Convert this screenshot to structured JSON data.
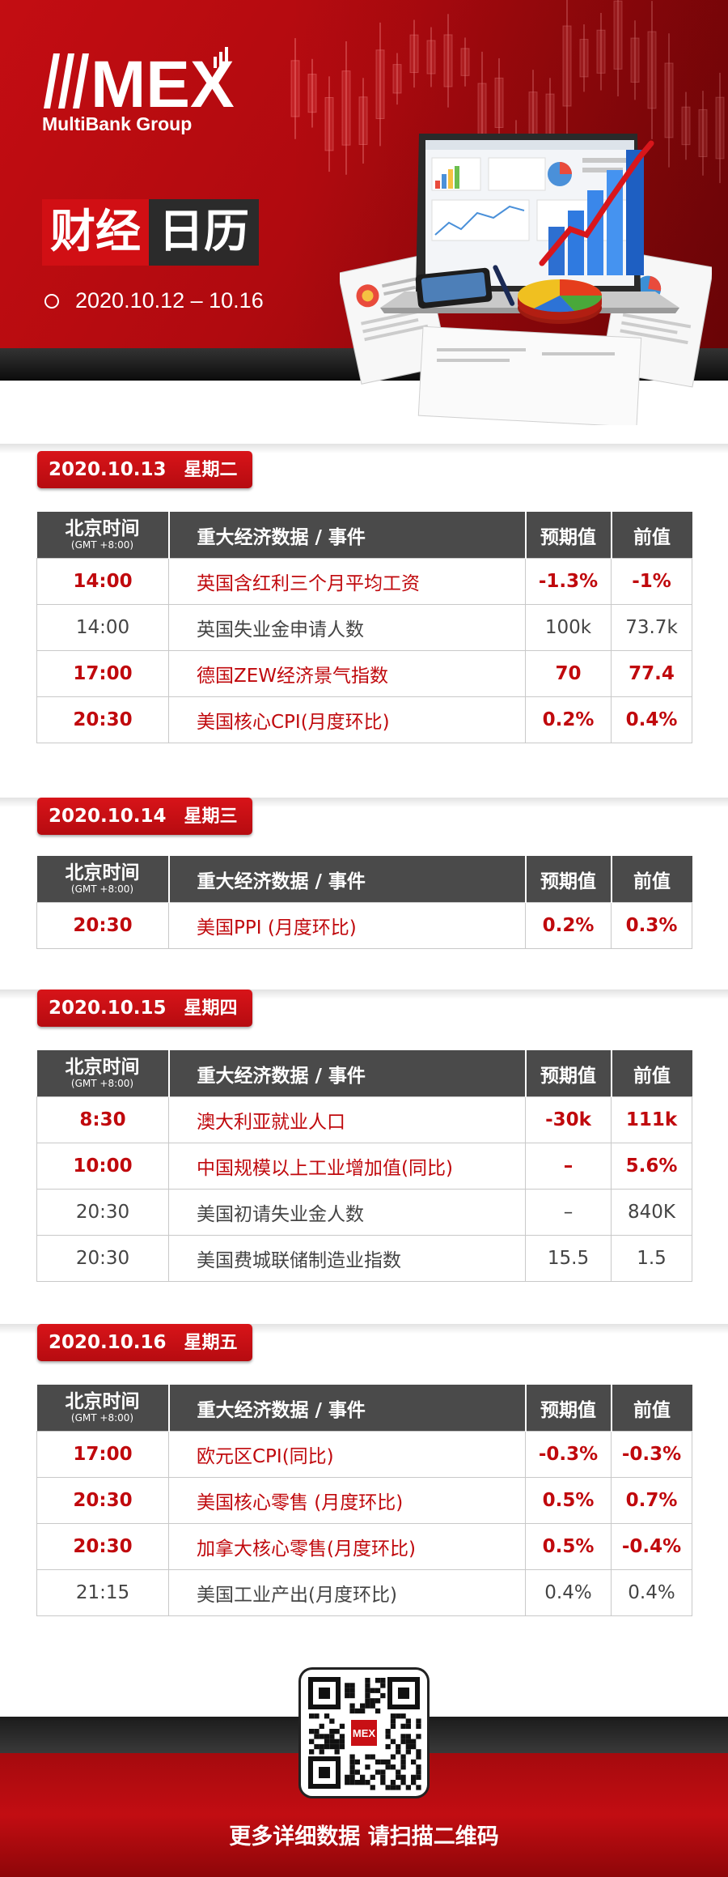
{
  "brand": {
    "logo_text": "MEX",
    "name": "MultiBank Group"
  },
  "hero": {
    "title_red": "财经",
    "title_dark": "日历",
    "date_range": "2020.10.12 – 10.16"
  },
  "table_header": {
    "time": "北京时间",
    "gmt": "(GMT +8:00)",
    "event": "重大经济数据 / 事件",
    "forecast": "预期值",
    "previous": "前值"
  },
  "days": [
    {
      "date": "2020.10.13",
      "weekday": "星期二",
      "rows": [
        {
          "time": "14:00",
          "event": "英国含红利三个月平均工资",
          "forecast": "-1.3%",
          "previous": "-1%",
          "highlight": true
        },
        {
          "time": "14:00",
          "event": "英国失业金申请人数",
          "forecast": "100k",
          "previous": "73.7k",
          "highlight": false
        },
        {
          "time": "17:00",
          "event": "德国ZEW经济景气指数",
          "forecast": "70",
          "previous": "77.4",
          "highlight": true
        },
        {
          "time": "20:30",
          "event": "美国核心CPI(月度环比)",
          "forecast": "0.2%",
          "previous": "0.4%",
          "highlight": true
        }
      ]
    },
    {
      "date": "2020.10.14",
      "weekday": "星期三",
      "rows": [
        {
          "time": "20:30",
          "event": "美国PPI (月度环比)",
          "forecast": "0.2%",
          "previous": "0.3%",
          "highlight": true
        }
      ]
    },
    {
      "date": "2020.10.15",
      "weekday": "星期四",
      "rows": [
        {
          "time": "8:30",
          "event": "澳大利亚就业人口",
          "forecast": "-30k",
          "previous": "111k",
          "highlight": true
        },
        {
          "time": "10:00",
          "event": "中国规模以上工业增加值(同比)",
          "forecast": "–",
          "previous": "5.6%",
          "highlight": true
        },
        {
          "time": "20:30",
          "event": "美国初请失业金人数",
          "forecast": "–",
          "previous": "840K",
          "highlight": false
        },
        {
          "time": "20:30",
          "event": "美国费城联储制造业指数",
          "forecast": "15.5",
          "previous": "1.5",
          "highlight": false
        }
      ]
    },
    {
      "date": "2020.10.16",
      "weekday": "星期五",
      "rows": [
        {
          "time": "17:00",
          "event": "欧元区CPI(同比)",
          "forecast": "-0.3%",
          "previous": "-0.3%",
          "highlight": true
        },
        {
          "time": "20:30",
          "event": "美国核心零售 (月度环比)",
          "forecast": "0.5%",
          "previous": "0.7%",
          "highlight": true
        },
        {
          "time": "20:30",
          "event": "加拿大核心零售(月度环比)",
          "forecast": "0.5%",
          "previous": "-0.4%",
          "highlight": true
        },
        {
          "time": "21:15",
          "event": "美国工业产出(月度环比)",
          "forecast": "0.4%",
          "previous": "0.4%",
          "highlight": false
        }
      ]
    }
  ],
  "footer": {
    "cta": "更多详细数据 请扫描二维码",
    "qr_badge": "MEX"
  },
  "colors": {
    "brand_red": "#c30d12",
    "highlight_text": "#c0090d",
    "header_gray": "#4a4a4a"
  }
}
